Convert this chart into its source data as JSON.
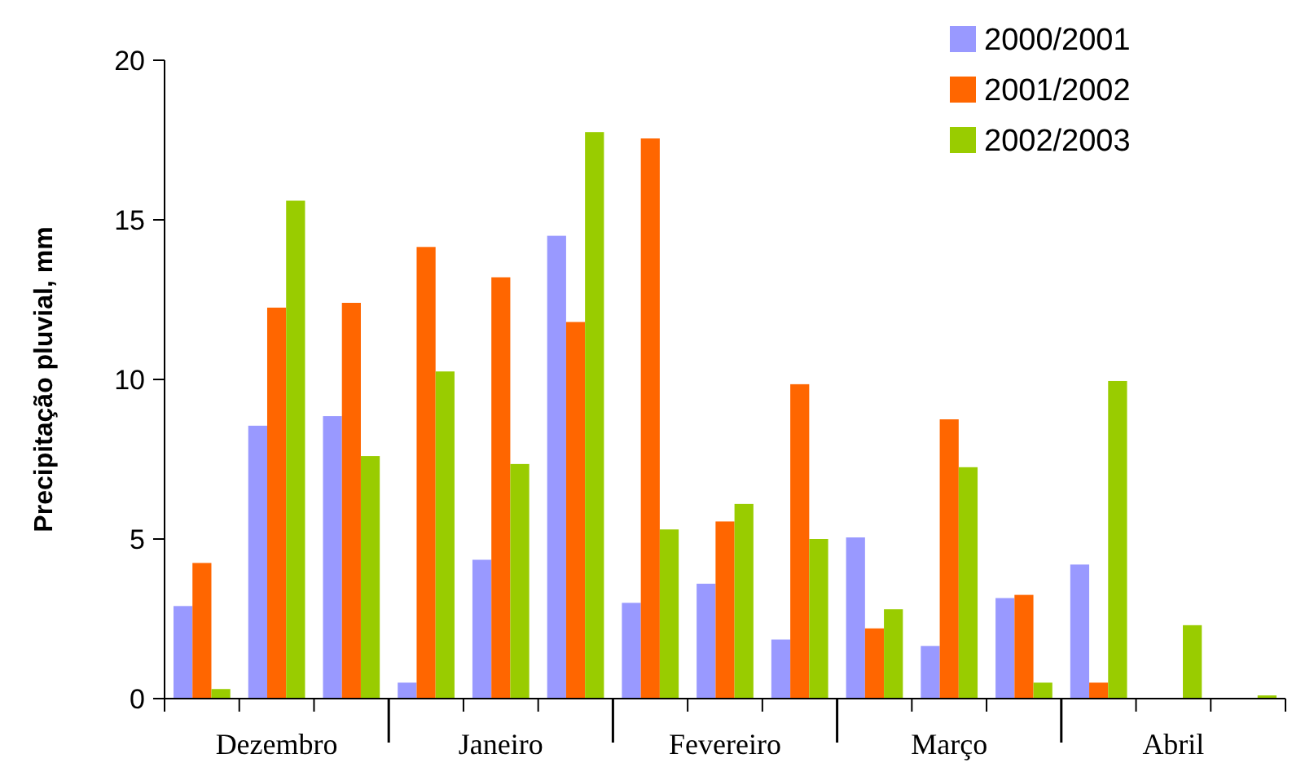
{
  "chart_data": {
    "type": "bar",
    "ylabel": "Precipitação pluvial, mm",
    "categories": [
      null,
      "Dezembro",
      null,
      null,
      "Janeiro",
      null,
      null,
      "Fevereiro",
      null,
      null,
      "Março",
      null,
      null,
      "Abril",
      null
    ],
    "series": [
      {
        "name": "2000/2001",
        "color": "#9999ff",
        "values": [
          2.9,
          8.55,
          8.85,
          0.5,
          4.35,
          14.5,
          3.0,
          3.6,
          1.85,
          5.05,
          1.65,
          3.15,
          4.2,
          0,
          0
        ]
      },
      {
        "name": "2001/2002",
        "color": "#ff6600",
        "values": [
          4.25,
          12.25,
          12.4,
          14.15,
          13.2,
          11.8,
          17.55,
          5.55,
          9.85,
          2.2,
          8.75,
          3.25,
          0.5,
          0,
          0
        ]
      },
      {
        "name": "2002/2003",
        "color": "#99cc00",
        "values": [
          0.3,
          15.6,
          7.6,
          10.25,
          7.35,
          17.75,
          5.3,
          6.1,
          5.0,
          2.8,
          7.25,
          0.5,
          9.95,
          2.3,
          0.1
        ]
      }
    ],
    "ylim": [
      0,
      20
    ],
    "yticks": [
      0,
      5,
      10,
      15,
      20
    ],
    "grid": false,
    "legend": "top right"
  }
}
